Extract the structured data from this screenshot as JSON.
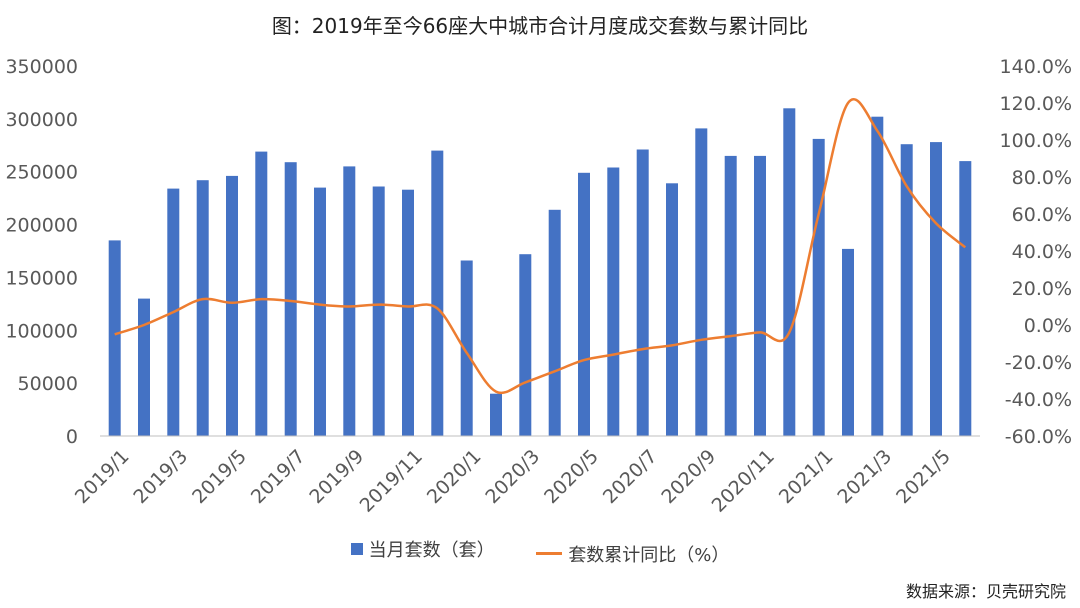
{
  "title": "图：2019年至今66座大中城市合计月度成交套数与累计同比",
  "source": "数据来源：贝壳研究院",
  "colors": {
    "bar": "#4472C4",
    "line": "#ED7D31",
    "axis": "#BFBFBF"
  },
  "chart_data": {
    "type": "bar",
    "categories": [
      "2019/1",
      "2019/2",
      "2019/3",
      "2019/4",
      "2019/5",
      "2019/6",
      "2019/7",
      "2019/8",
      "2019/9",
      "2019/10",
      "2019/11",
      "2019/12",
      "2020/1",
      "2020/2",
      "2020/3",
      "2020/4",
      "2020/5",
      "2020/6",
      "2020/7",
      "2020/8",
      "2020/9",
      "2020/10",
      "2020/11",
      "2020/12",
      "2021/1",
      "2021/2",
      "2021/3",
      "2021/4",
      "2021/5",
      "2021/6"
    ],
    "x_tick_labels": [
      "2019/1",
      "2019/3",
      "2019/5",
      "2019/7",
      "2019/9",
      "2019/11",
      "2020/1",
      "2020/3",
      "2020/5",
      "2020/7",
      "2020/9",
      "2020/11",
      "2021/1",
      "2021/3",
      "2021/5"
    ],
    "x_tick_categories": [
      "2019/1",
      "2019/3",
      "2019/5",
      "2019/7",
      "2019/9",
      "2019/11",
      "2020/1",
      "2020/3",
      "2020/5",
      "2020/7",
      "2020/9",
      "2020/11",
      "2021/1",
      "2021/3",
      "2021/5"
    ],
    "series": [
      {
        "name": "当月套数（套）",
        "type": "bar",
        "axis": "left",
        "values": [
          185000,
          130000,
          234000,
          242000,
          246000,
          269000,
          259000,
          235000,
          255000,
          236000,
          233000,
          270000,
          166000,
          40000,
          172000,
          214000,
          249000,
          254000,
          271000,
          239000,
          291000,
          265000,
          265000,
          310000,
          281000,
          177000,
          302000,
          276000,
          278000,
          260000
        ]
      },
      {
        "name": "套数累计同比（%）",
        "type": "line",
        "axis": "right",
        "values": [
          -5,
          0,
          7,
          14,
          12,
          14,
          13,
          11,
          10,
          11,
          10,
          9,
          -15,
          -36,
          -31,
          -25,
          -19,
          -16,
          -13,
          -11,
          -8,
          -6,
          -4,
          -4,
          60,
          120,
          105,
          75,
          55,
          42
        ]
      }
    ],
    "left_axis": {
      "range": [
        0,
        350000
      ],
      "ticks": [
        "0",
        "50000",
        "100000",
        "150000",
        "200000",
        "250000",
        "300000",
        "350000"
      ]
    },
    "right_axis": {
      "range": [
        -60,
        140
      ],
      "ticks": [
        "-60.0%",
        "-40.0%",
        "-20.0%",
        "0.0%",
        "20.0%",
        "40.0%",
        "60.0%",
        "80.0%",
        "100.0%",
        "120.0%",
        "140.0%"
      ]
    },
    "grid": false,
    "legend": {
      "position": "bottom"
    }
  }
}
